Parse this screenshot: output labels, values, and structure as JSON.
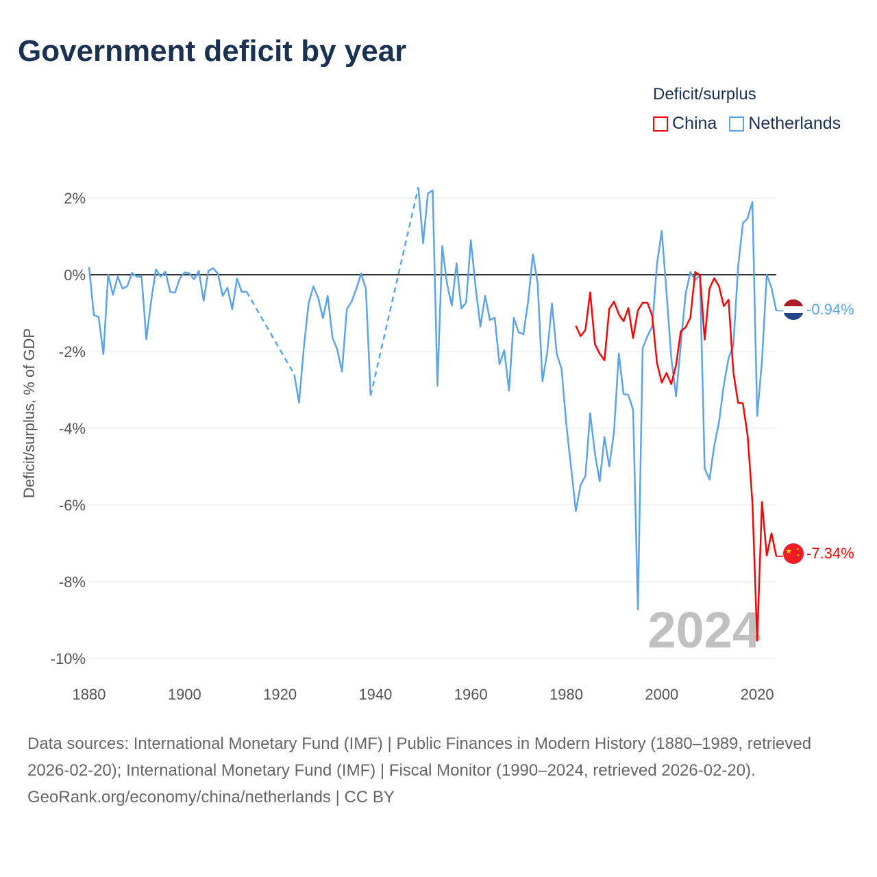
{
  "title": "Government deficit by year",
  "legend": {
    "title": "Deficit/surplus",
    "items": [
      {
        "name": "China",
        "color": "#ff0000"
      },
      {
        "name": "Netherlands",
        "color": "#5ba4ec"
      }
    ]
  },
  "footer": {
    "sources": "Data sources: International Monetary Fund (IMF) | Public Finances in Modern History (1880–1989, retrieved 2026-02-20); International Monetary Fund (IMF) | Fiscal Monitor (1990–2024, retrieved 2026-02-20).",
    "credit": "GeoRank.org/economy/china/netherlands | CC BY"
  },
  "chart_data": {
    "type": "line",
    "title": "Government deficit by year",
    "xlabel": "",
    "ylabel": "Deficit/surplus, % of GDP",
    "xlim": [
      1880,
      2024
    ],
    "ylim": [
      -10,
      2
    ],
    "xticks": [
      1880,
      1900,
      1920,
      1940,
      1960,
      1980,
      2000,
      2020
    ],
    "yticks": [
      2,
      0,
      -2,
      -4,
      -6,
      -8,
      -10
    ],
    "ytick_labels": [
      "2%",
      "0%",
      "-2%",
      "-4%",
      "-6%",
      "-8%",
      "-10%"
    ],
    "year_watermark": "2024",
    "grid": true,
    "legend_position": "top-right",
    "series": [
      {
        "name": "China",
        "color": "#ff0000",
        "end_label": "-7.34%",
        "start": 1982,
        "values": [
          -1.33,
          -1.6,
          -1.44,
          -0.46,
          -1.81,
          -2.06,
          -2.23,
          -0.89,
          -0.7,
          -1.03,
          -1.21,
          -0.87,
          -1.65,
          -0.93,
          -0.73,
          -0.73,
          -1.07,
          -2.3,
          -2.81,
          -2.56,
          -2.85,
          -2.35,
          -1.47,
          -1.37,
          -1.12,
          0.07,
          -0.01,
          -1.69,
          -0.36,
          -0.09,
          -0.3,
          -0.82,
          -0.65,
          -2.53,
          -3.34,
          -3.35,
          -4.2,
          -5.94,
          -9.54,
          -5.92,
          -7.32,
          -6.74,
          -7.34
        ]
      },
      {
        "name": "Netherlands",
        "color": "#5ba4ec",
        "end_label": "-0.94%",
        "start": 1880,
        "values": [
          0.2,
          -1.05,
          -1.1,
          -2.07,
          0,
          -0.52,
          -0.05,
          -0.36,
          -0.3,
          0.05,
          -0.05,
          -0.05,
          -1.68,
          -0.7,
          0.14,
          -0.05,
          0.08,
          -0.45,
          -0.47,
          -0.1,
          0.06,
          0.04,
          -0.12,
          0.1,
          -0.68,
          0.1,
          0.17,
          0.03,
          -0.55,
          -0.34,
          -0.9,
          -0.1,
          -0.45,
          -0.44,
          null,
          null,
          null,
          null,
          null,
          null,
          null,
          null,
          null,
          -2.6,
          -3.33,
          -1.9,
          -0.75,
          -0.3,
          -0.6,
          -1.13,
          -0.55,
          -1.63,
          -1.95,
          -2.52,
          -0.9,
          -0.7,
          -0.37,
          0.03,
          -0.37,
          -3.15,
          null,
          null,
          null,
          null,
          null,
          null,
          null,
          null,
          null,
          2.28,
          0.82,
          2.12,
          2.2,
          -2.9,
          0.75,
          -0.23,
          -0.8,
          0.3,
          -0.88,
          -0.73,
          0.9,
          -0.33,
          -1.35,
          -0.55,
          -1.18,
          -1.12,
          -2.33,
          -1.97,
          -3.02,
          -1.12,
          -1.5,
          -1.55,
          -0.7,
          0.53,
          -0.23,
          -2.78,
          -2.03,
          -0.75,
          -2.07,
          -2.45,
          -3.9,
          -5.02,
          -6.16,
          -5.48,
          -5.25,
          -3.61,
          -4.66,
          -5.39,
          -4.23,
          -5.0,
          -4.09,
          -2.05,
          -3.11,
          -3.13,
          -3.52,
          -8.72,
          -1.92,
          -1.6,
          -1.35,
          0.28,
          1.14,
          -0.46,
          -2.17,
          -3.17,
          -1.81,
          -0.5,
          0.07,
          -0.14,
          -0.01,
          -5.05,
          -5.34,
          -4.45,
          -3.84,
          -2.88,
          -2.17,
          -1.85,
          0.2,
          1.34,
          1.48,
          1.9,
          -3.68,
          -2.25,
          0.0,
          -0.34,
          -0.94
        ]
      }
    ]
  }
}
